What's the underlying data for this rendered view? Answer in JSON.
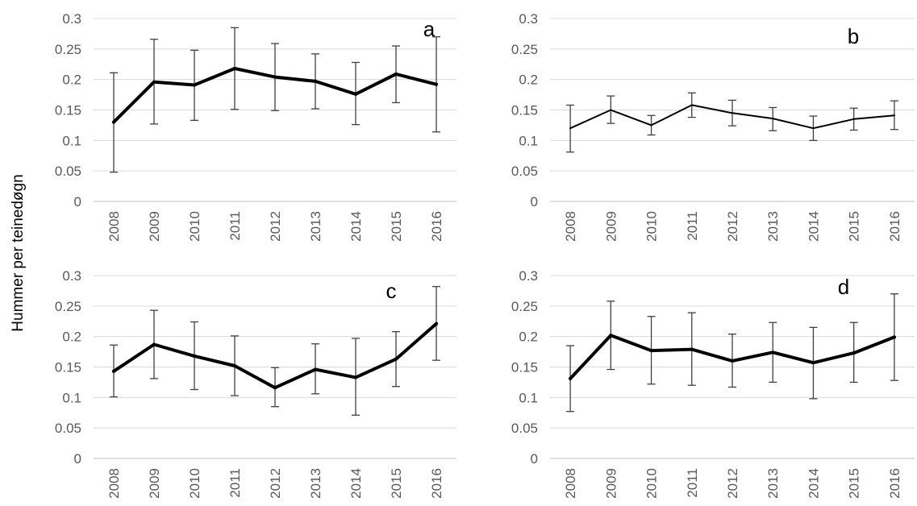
{
  "ylabel": "Hummer per teinedøgn",
  "chart_data": [
    {
      "type": "line",
      "panel_label": "a",
      "ylim": [
        0,
        0.3
      ],
      "yticks": [
        "0",
        "0.05",
        "0.1",
        "0.15",
        "0.2",
        "0.25",
        "0.3"
      ],
      "categories": [
        "2008",
        "2009",
        "2010",
        "2011",
        "2012",
        "2013",
        "2014",
        "2015",
        "2016"
      ],
      "values": [
        0.13,
        0.196,
        0.191,
        0.218,
        0.204,
        0.197,
        0.176,
        0.209,
        0.192
      ],
      "err_low": [
        0.048,
        0.127,
        0.133,
        0.151,
        0.149,
        0.152,
        0.126,
        0.162,
        0.114
      ],
      "err_high": [
        0.211,
        0.266,
        0.248,
        0.285,
        0.259,
        0.242,
        0.228,
        0.255,
        0.27
      ],
      "grid": true,
      "line_weight": "bold"
    },
    {
      "type": "line",
      "panel_label": "b",
      "ylim": [
        0,
        0.3
      ],
      "yticks": [
        "0",
        "0.05",
        "0.1",
        "0.15",
        "0.2",
        "0.25",
        "0.3"
      ],
      "categories": [
        "2008",
        "2009",
        "2010",
        "2011",
        "2012",
        "2013",
        "2014",
        "2015",
        "2016"
      ],
      "values": [
        0.12,
        0.15,
        0.125,
        0.158,
        0.145,
        0.136,
        0.12,
        0.135,
        0.141
      ],
      "err_low": [
        0.081,
        0.128,
        0.109,
        0.138,
        0.124,
        0.116,
        0.1,
        0.117,
        0.118
      ],
      "err_high": [
        0.158,
        0.173,
        0.141,
        0.178,
        0.166,
        0.154,
        0.14,
        0.153,
        0.165
      ],
      "grid": true,
      "line_weight": "thin"
    },
    {
      "type": "line",
      "panel_label": "c",
      "ylim": [
        0,
        0.3
      ],
      "yticks": [
        "0",
        "0.05",
        "0.1",
        "0.15",
        "0.2",
        "0.25",
        "0.3"
      ],
      "categories": [
        "2008",
        "2009",
        "2010",
        "2011",
        "2012",
        "2013",
        "2014",
        "2015",
        "2016"
      ],
      "values": [
        0.143,
        0.187,
        0.168,
        0.152,
        0.116,
        0.146,
        0.133,
        0.163,
        0.221
      ],
      "err_low": [
        0.101,
        0.131,
        0.113,
        0.103,
        0.085,
        0.106,
        0.071,
        0.118,
        0.161
      ],
      "err_high": [
        0.186,
        0.243,
        0.224,
        0.201,
        0.149,
        0.188,
        0.197,
        0.208,
        0.282
      ],
      "grid": true,
      "line_weight": "bold"
    },
    {
      "type": "line",
      "panel_label": "d",
      "ylim": [
        0,
        0.3
      ],
      "yticks": [
        "0",
        "0.05",
        "0.1",
        "0.15",
        "0.2",
        "0.25",
        "0.3"
      ],
      "categories": [
        "2008",
        "2009",
        "2010",
        "2011",
        "2012",
        "2013",
        "2014",
        "2015",
        "2016"
      ],
      "values": [
        0.131,
        0.202,
        0.177,
        0.179,
        0.16,
        0.174,
        0.157,
        0.173,
        0.199
      ],
      "err_low": [
        0.077,
        0.146,
        0.122,
        0.12,
        0.117,
        0.125,
        0.098,
        0.125,
        0.128
      ],
      "err_high": [
        0.185,
        0.258,
        0.233,
        0.239,
        0.204,
        0.223,
        0.215,
        0.223,
        0.27
      ],
      "grid": true,
      "line_weight": "bold"
    }
  ]
}
